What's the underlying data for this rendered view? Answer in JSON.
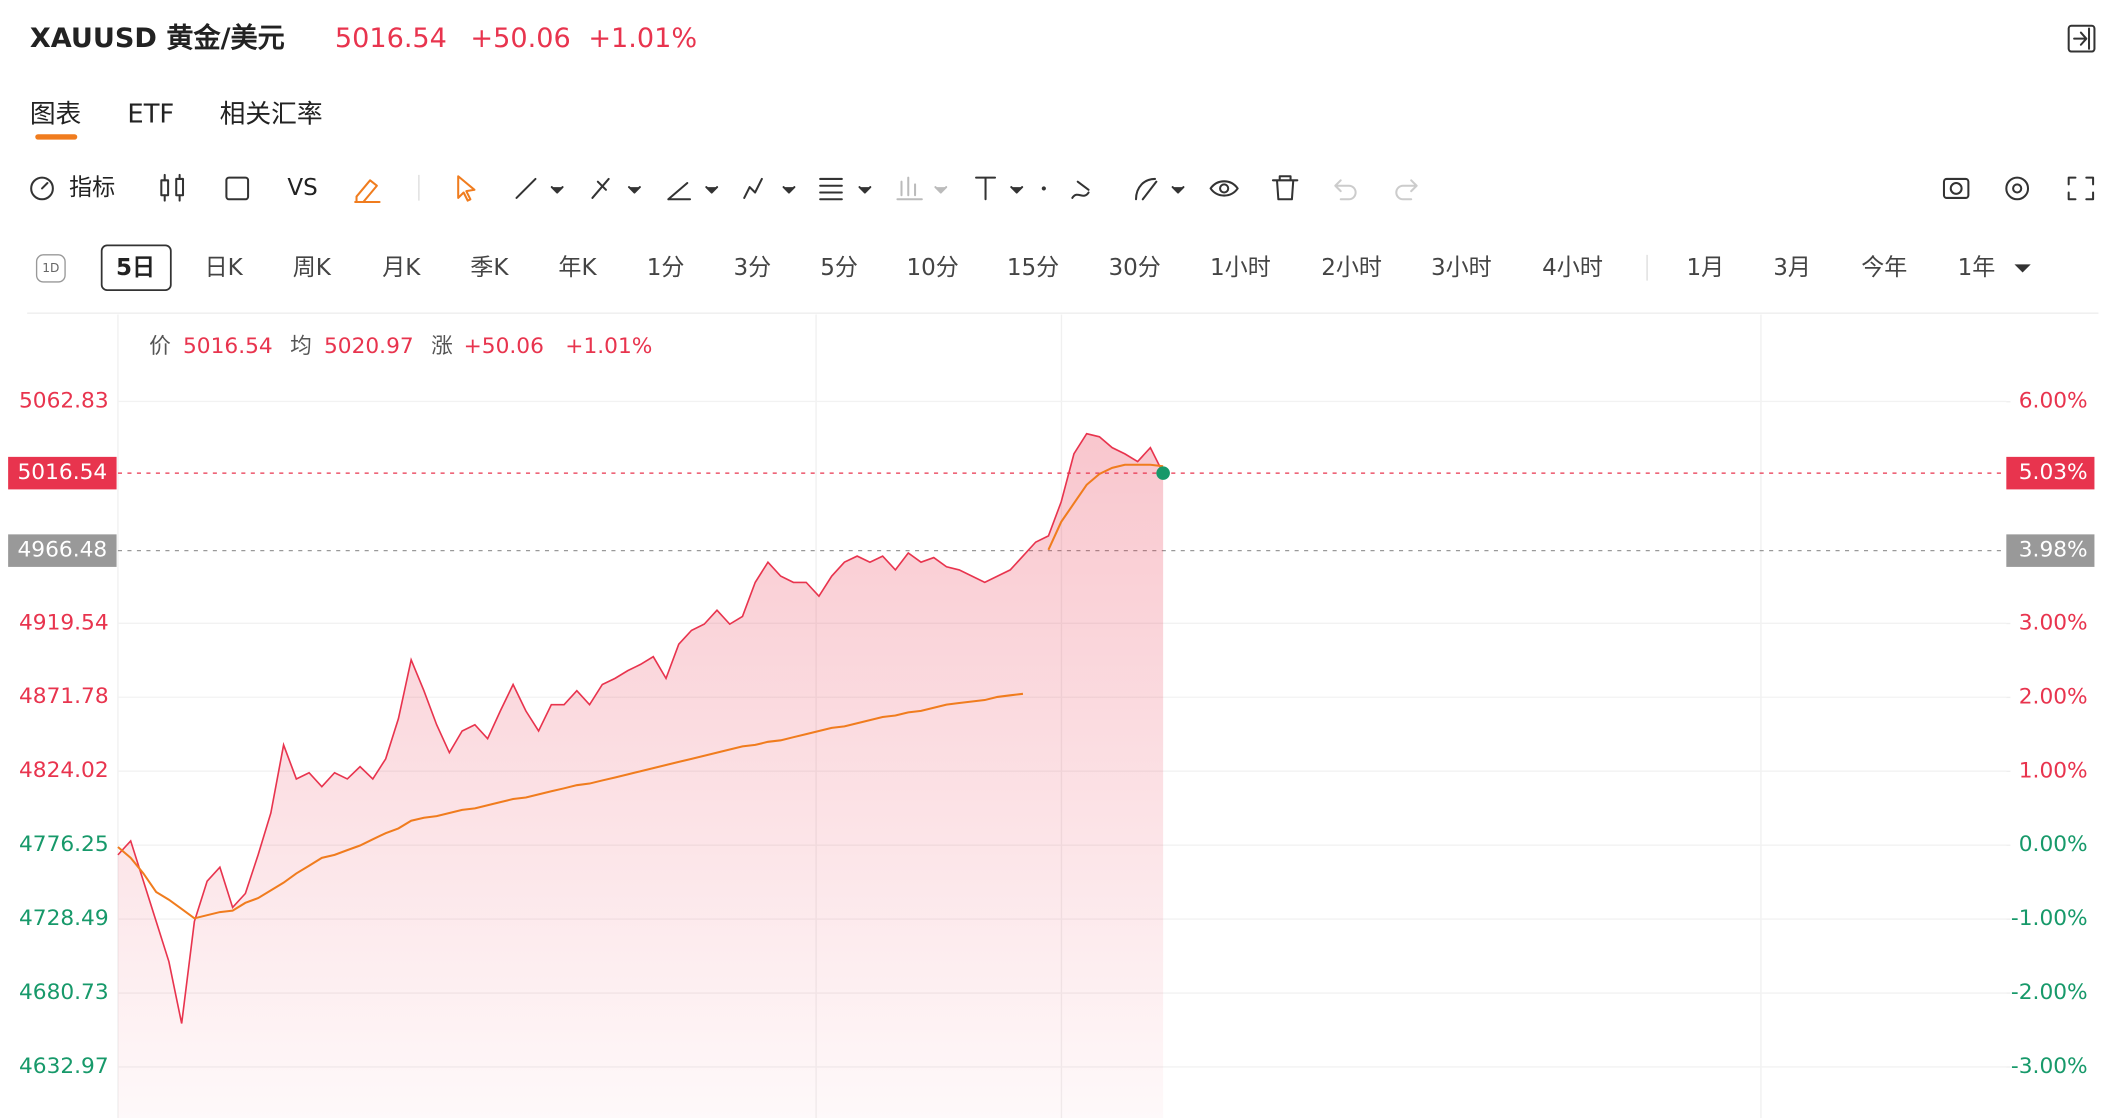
{
  "header": {
    "title": "XAUUSD 黄金/美元",
    "price": "5016.54",
    "change": "+50.06",
    "change_pct": "+1.01%"
  },
  "tabs": [
    "图表",
    "ETF",
    "相关汇率"
  ],
  "toolbar": {
    "indicators": "指标",
    "compare": "VS"
  },
  "period_icon": "1D",
  "periods": [
    "5日",
    "日K",
    "周K",
    "月K",
    "季K",
    "年K",
    "1分",
    "3分",
    "5分",
    "10分",
    "15分",
    "30分",
    "1小时",
    "2小时",
    "3小时",
    "4小时",
    "1月",
    "3月",
    "今年",
    "1年"
  ],
  "quote_bar": {
    "price_label": "价",
    "price": "5016.54",
    "avg_label": "均",
    "avg": "5020.97",
    "change_label": "涨",
    "change": "+50.06",
    "pct": "+1.01%"
  },
  "chart_data": {
    "type": "line",
    "up_color": "#e8344e",
    "down_color": "#17996a",
    "grid": true,
    "ylim": [
      4600,
      5119
    ],
    "yticks": [
      5062.83,
      4919.54,
      4871.78,
      4824.02,
      4776.25,
      4728.49,
      4680.73,
      4632.97
    ],
    "y2lim": [
      -3.69,
      7.18
    ],
    "y2ticks": [
      {
        "value": 6,
        "label": "6.00%"
      },
      {
        "value": 3,
        "label": "3.00%"
      },
      {
        "value": 2,
        "label": "2.00%"
      },
      {
        "value": 1,
        "label": "1.00%"
      },
      {
        "value": 0,
        "label": "0.00%"
      },
      {
        "value": -1,
        "label": "-1.00%"
      },
      {
        "value": -2,
        "label": "-2.00%"
      },
      {
        "value": -3,
        "label": "-3.00%"
      }
    ],
    "markers": [
      {
        "value": 5016.54,
        "pct_label": "5.03%",
        "color": "#e8344e"
      },
      {
        "value": 4966.48,
        "pct_label": "3.98%",
        "color": "#999999"
      }
    ],
    "series": [
      {
        "color": "#e8344e",
        "values": [
          4770,
          4779,
          4753,
          4727,
          4701,
          4661,
          4727,
          4753,
          4762,
          4736,
          4745,
          4770,
          4797,
          4841,
          4819,
          4823,
          4814,
          4823,
          4819,
          4827,
          4819,
          4832,
          4858,
          4896,
          4876,
          4854,
          4836,
          4850,
          4854,
          4845,
          4863,
          4880,
          4863,
          4850,
          4867,
          4867,
          4876,
          4867,
          4880,
          4884,
          4889,
          4893,
          4898,
          4884,
          4906,
          4915,
          4919,
          4928,
          4919,
          4924,
          4946,
          4959,
          4950,
          4946,
          4946,
          4937,
          4950,
          4959,
          4963,
          4959,
          4963,
          4954,
          4965,
          4959,
          4962,
          4956,
          4954,
          4950,
          4946,
          4950,
          4954,
          4963,
          4972,
          4976,
          4998,
          5029,
          5042,
          5040,
          5033,
          5029,
          5024,
          5033,
          5016.54
        ]
      },
      {
        "color": "#f07c1e",
        "values": [
          4775,
          4768,
          4758,
          4746,
          4741,
          4735,
          4729,
          4731,
          4733,
          4734,
          4739,
          4742,
          4747,
          4752,
          4758,
          4763,
          4768,
          4770,
          4773,
          4776,
          4780,
          4784,
          4787,
          4792,
          4794,
          4795,
          4797,
          4799,
          4800,
          4802,
          4804,
          4806,
          4807,
          4809,
          4811,
          4813,
          4815,
          4816,
          4818,
          4820,
          4822,
          4824,
          4826,
          4828,
          4830,
          4832,
          4834,
          4836,
          4838,
          4840,
          4841,
          4843,
          4844,
          4846,
          4848,
          4850,
          4852,
          4853,
          4855,
          4857,
          4859,
          4860,
          4862,
          4863,
          4865,
          4867,
          4868,
          4869,
          4870,
          4872,
          4873,
          4874,
          null,
          4967,
          4985,
          4997,
          5009,
          5016,
          5020,
          5022,
          5022,
          5022,
          5021
        ]
      }
    ]
  }
}
